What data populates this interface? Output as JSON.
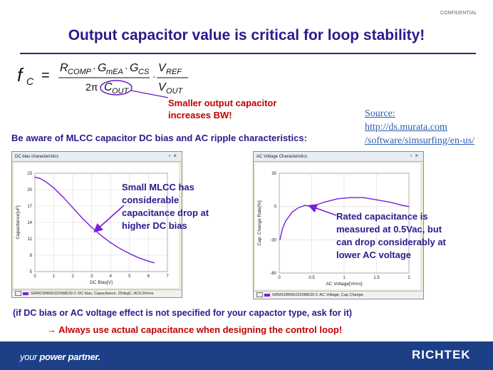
{
  "header": {
    "confidential": "CONFIDENTIAL",
    "title": "Output capacitor value is critical for loop stability!"
  },
  "formula": {
    "lhs": "f",
    "lhs_sub": "C",
    "num1": "R",
    "num1_sub": "COMP",
    "num2": "G",
    "num2_sub": "mEA",
    "num3": "G",
    "num3_sub": "CS",
    "den1": "2π",
    "den2": "C",
    "den2_sub": "OUT",
    "num4": "V",
    "num4_sub": "REF",
    "den3": "V",
    "den3_sub": "OUT"
  },
  "note_red": {
    "line1": "Smaller output capacitor",
    "line2": "increases BW!"
  },
  "source": {
    "label": "Source:",
    "url1": "http://ds.murata.com",
    "url2": "/software/simsurfing/en-us/"
  },
  "aware_text": "Be aware of MLCC capacitor DC bias and AC ripple characteristics:",
  "dc_window": {
    "title": "DC bias characteristics",
    "status": "GRM21BR60J226ME39  C-DC bias, Capacitance, 25degC, AC0.5Vrms",
    "callout": [
      "Small MLCC has",
      "considerable",
      "capacitance drop at",
      "higher DC bias"
    ]
  },
  "ac_window": {
    "title": "AC Voltage Characteristics",
    "status": "GRM21BR60J226ME39  C-AC Voltage, Cap Change",
    "callout": [
      "Rated capacitance is",
      "measured at 0.5Vac, but",
      "can drop considerably at",
      "lower AC voltage"
    ]
  },
  "chart_data": [
    {
      "type": "line",
      "xlabel": "DC Bias[V]",
      "ylabel": "Capacitance[uF]",
      "xlim": [
        0,
        7
      ],
      "ylim": [
        5,
        23
      ],
      "xticks": [
        "0",
        "1",
        "2",
        "3",
        "4",
        "5",
        "6",
        "7"
      ],
      "yticks": [
        "5",
        "8",
        "11",
        "14",
        "17",
        "20",
        "23"
      ],
      "grid": true,
      "x": [
        0,
        0.3,
        0.6,
        1.0,
        1.5,
        2.0,
        2.5,
        3.0,
        3.5,
        4.0,
        4.5,
        5.0,
        5.5,
        6.0,
        6.3
      ],
      "y": [
        22.3,
        22.0,
        21.4,
        20.3,
        18.6,
        16.7,
        14.8,
        13.1,
        11.6,
        10.3,
        9.2,
        8.3,
        7.5,
        6.9,
        6.6
      ],
      "line_color": "#7a1fd6"
    },
    {
      "type": "line",
      "xlabel": "AC Voltage[Vrms]",
      "ylabel": "Cap. Change Rate[%]",
      "xlim": [
        0,
        2
      ],
      "ylim": [
        -60,
        30
      ],
      "xticks": [
        "0",
        "0.5",
        "1",
        "1.5",
        "2"
      ],
      "yticks": [
        "30",
        "0",
        "-30",
        "-60"
      ],
      "grid": true,
      "x": [
        0.01,
        0.05,
        0.1,
        0.2,
        0.3,
        0.4,
        0.5,
        0.7,
        0.9,
        1.1,
        1.3,
        1.5,
        1.7,
        1.9,
        2.0
      ],
      "y": [
        -30,
        -20,
        -13,
        -5,
        -1,
        1,
        0,
        4,
        7,
        8,
        8,
        6,
        4,
        1,
        0
      ],
      "line_color": "#7a1fd6"
    }
  ],
  "conditions_text": "(if DC bias or AC voltage effect is not specified for your capactor type, ask for it)",
  "always_text": "→ Always use actual capacitance when designing the control loop!",
  "footer": {
    "tagline_regular": "your",
    "tagline_bold": "power partner.",
    "logo": "RICHTEK"
  }
}
